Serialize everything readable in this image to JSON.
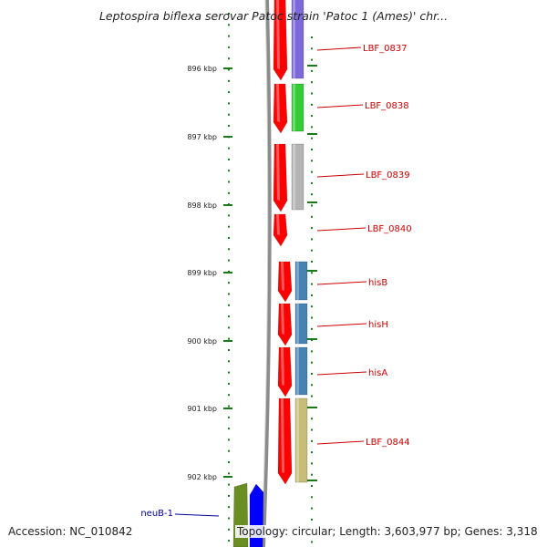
{
  "title": "Leptospira biflexa serovar Patoc strain 'Patoc 1 (Ames)' chr...",
  "footer": {
    "accession": "Accession: NC_010842",
    "topology": "Topology: circular; Length: 3,603,977 bp; Genes: 3,318"
  },
  "colors": {
    "ruler_dots": "#1a7a1a",
    "backbone": "#888888",
    "forward_strand_genes": "#ff0000",
    "label_red": "#cc0000",
    "label_blue": "#000099"
  },
  "ruler": [
    {
      "label": "896 kbp"
    },
    {
      "label": "897 kbp"
    },
    {
      "label": "898 kbp"
    },
    {
      "label": "899 kbp"
    },
    {
      "label": "900 kbp"
    },
    {
      "label": "901 kbp"
    },
    {
      "label": "902 kbp"
    }
  ],
  "genes": [
    {
      "name": "LBF_0837",
      "strand": "+",
      "color": "#7b68d9"
    },
    {
      "name": "LBF_0838",
      "strand": "+",
      "color": "#33cc33"
    },
    {
      "name": "LBF_0839",
      "strand": "+",
      "color": "#b4b4b4"
    },
    {
      "name": "LBF_0840",
      "strand": "+",
      "color": null
    },
    {
      "name": "hisB",
      "strand": "+",
      "color": "#4682b4"
    },
    {
      "name": "hisH",
      "strand": "+",
      "color": "#4682b4"
    },
    {
      "name": "hisA",
      "strand": "+",
      "color": "#4682b4"
    },
    {
      "name": "LBF_0844",
      "strand": "+",
      "color": "#c8bd78"
    },
    {
      "name": "neuB-1",
      "strand": "-",
      "color": "#6b8e23"
    }
  ]
}
